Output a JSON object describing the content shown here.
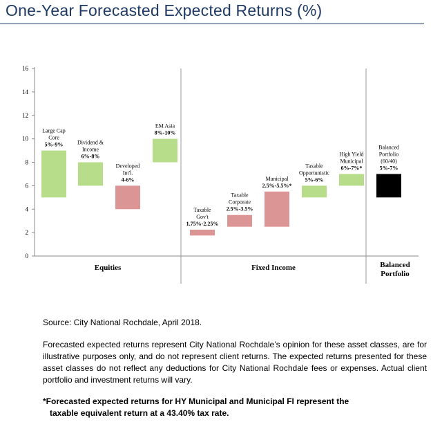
{
  "header": {
    "title": "One-Year Forecasted Expected Returns (%)"
  },
  "chart_data": {
    "type": "bar",
    "title": "One-Year Forecasted Expected Returns (%)",
    "xlabel": "",
    "ylabel": "",
    "ylim": [
      0,
      16
    ],
    "yticks": [
      0,
      2,
      4,
      6,
      8,
      10,
      12,
      14,
      16
    ],
    "grid": false,
    "legend": "none",
    "groups": [
      {
        "label": [
          "Equities"
        ]
      },
      {
        "label": [
          "Fixed Income"
        ]
      },
      {
        "label": [
          "Balanced",
          "Portfolio"
        ]
      }
    ],
    "categories": [
      {
        "label": [
          "Large Cap",
          "Core"
        ],
        "range_text": "5%-9%",
        "group": 0,
        "low": 5,
        "high": 9,
        "color": "#b7dd8a"
      },
      {
        "label": [
          "Dividend &",
          "Income"
        ],
        "range_text": "6%-8%",
        "group": 0,
        "low": 6,
        "high": 8,
        "color": "#b7dd8a"
      },
      {
        "label": [
          "Developed",
          "Int'l."
        ],
        "range_text": "4-6%",
        "group": 0,
        "low": 4,
        "high": 6,
        "color": "#db9595"
      },
      {
        "label": [
          "EM Asia"
        ],
        "range_text": "8%-10%",
        "group": 0,
        "low": 8,
        "high": 10,
        "color": "#b7dd8a"
      },
      {
        "label": [
          "Taxable",
          "Gov't"
        ],
        "range_text": "1.75%-2.25%",
        "group": 1,
        "low": 1.75,
        "high": 2.25,
        "color": "#db9595"
      },
      {
        "label": [
          "Taxable",
          "Corporate"
        ],
        "range_text": "2.5%-3.5%",
        "group": 1,
        "low": 2.5,
        "high": 3.5,
        "color": "#db9595"
      },
      {
        "label": [
          "Municipal"
        ],
        "range_text": "2.5%-5.5%*",
        "group": 1,
        "low": 2.5,
        "high": 5.5,
        "color": "#db9595"
      },
      {
        "label": [
          "Taxable",
          "Opportunistic"
        ],
        "range_text": "5%-6%",
        "group": 1,
        "low": 5,
        "high": 6,
        "color": "#b7dd8a"
      },
      {
        "label": [
          "High Yield",
          "Municipal"
        ],
        "range_text": "6%-7%*",
        "group": 1,
        "low": 6,
        "high": 7,
        "color": "#b7dd8a"
      },
      {
        "label": [
          "Balanced",
          "Portfolio",
          "(60/40)"
        ],
        "range_text": "5%-7%",
        "group": 2,
        "low": 5,
        "high": 7,
        "color": "#000000"
      }
    ]
  },
  "notes": {
    "source": "Source: City National Rochdale, April 2018.",
    "disclaimer": "Forecasted expected returns represent City National Rochdale’s opinion for these asset classes, are for illustrative purposes only, and do not represent client returns. The expected returns presented for these asset classes do not reflect any deductions for City National Rochdale fees or expenses. Actual client portfolio and investment returns will vary.",
    "footnote_line1": "*Forecasted expected returns for HY Municipal and Municipal FI represent the",
    "footnote_line2": "taxable equivalent return at a 43.40% tax rate."
  }
}
